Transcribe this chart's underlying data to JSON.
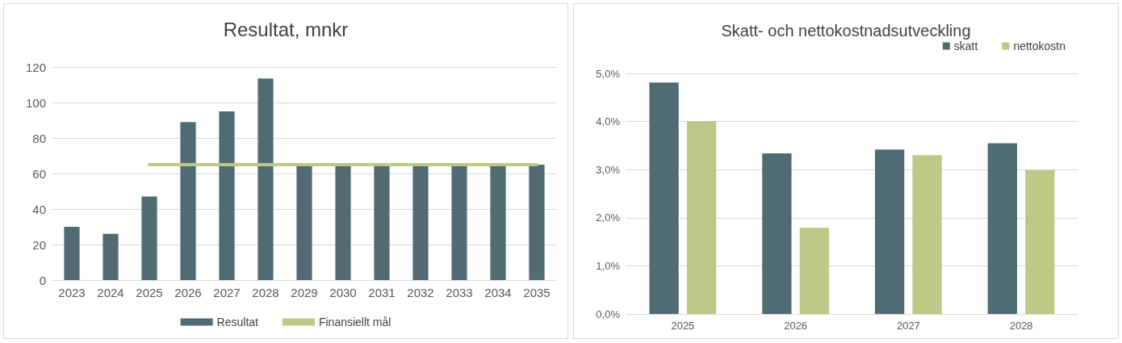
{
  "chart_data": [
    {
      "type": "bar",
      "title": "Resultat, mnkr",
      "categories": [
        "2023",
        "2024",
        "2025",
        "2026",
        "2027",
        "2028",
        "2029",
        "2030",
        "2031",
        "2032",
        "2033",
        "2034",
        "2035"
      ],
      "series": [
        {
          "name": "Resultat",
          "color": "#506b73",
          "values": [
            30,
            26,
            47,
            89,
            95,
            113.5,
            65,
            65,
            65,
            65,
            65,
            65,
            65
          ]
        },
        {
          "name": "Finansiellt mål",
          "type": "line",
          "color": "#bdc986",
          "marker": "none",
          "values": [
            null,
            null,
            65,
            65,
            65,
            65,
            65,
            65,
            65,
            65,
            65,
            65,
            65
          ]
        }
      ],
      "ylim": [
        0,
        120
      ],
      "yticks": [
        0,
        20,
        40,
        60,
        80,
        100,
        120
      ],
      "grid": "y",
      "legend": "bottom"
    },
    {
      "type": "bar",
      "title": "Skatt- och nettokostnadsutveckling",
      "categories": [
        "2025",
        "2026",
        "2027",
        "2028"
      ],
      "series": [
        {
          "name": "skatt",
          "color": "#506b73",
          "values": [
            4.81,
            3.34,
            3.42,
            3.55
          ]
        },
        {
          "name": "nettokostn",
          "color": "#bdc986",
          "values": [
            4.01,
            1.79,
            3.3,
            2.99
          ]
        }
      ],
      "ylim": [
        0,
        5
      ],
      "yticks": [
        {
          "value": 0,
          "label": "0,0%"
        },
        {
          "value": 1,
          "label": "1,0%"
        },
        {
          "value": 2,
          "label": "2,0%"
        },
        {
          "value": 3,
          "label": "3,0%"
        },
        {
          "value": 4,
          "label": "4,0%"
        },
        {
          "value": 5,
          "label": "5,0%"
        }
      ],
      "grid": "y",
      "legend": "top right"
    }
  ]
}
